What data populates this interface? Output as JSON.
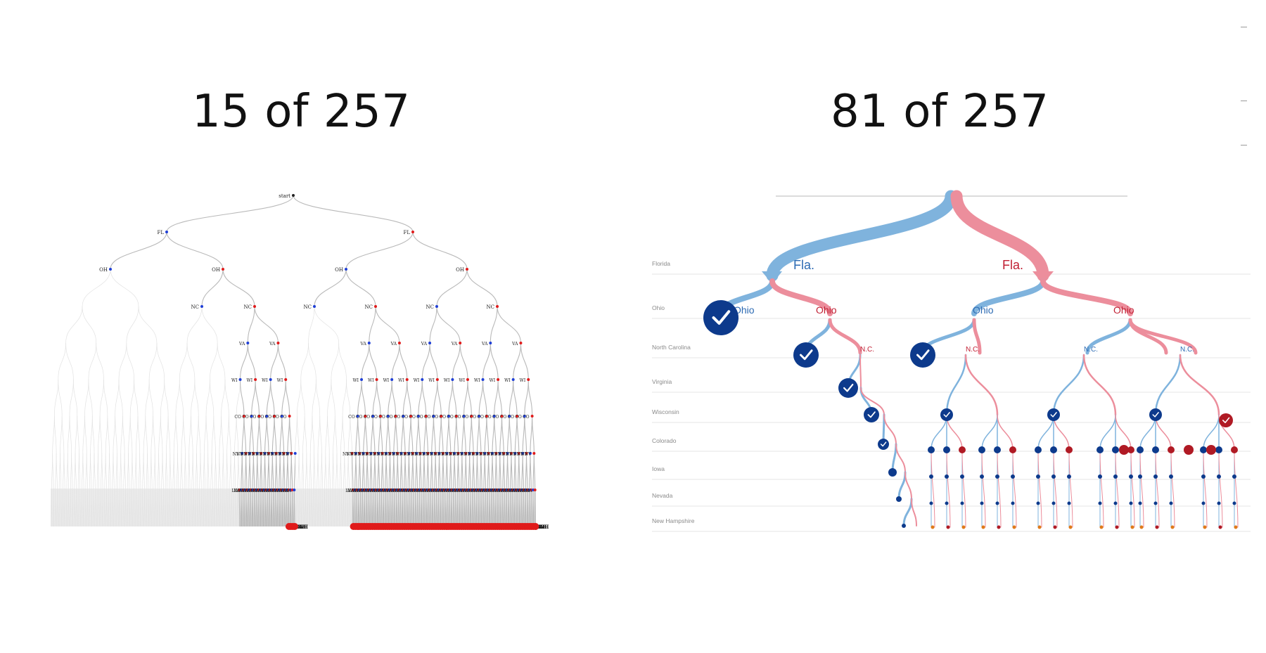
{
  "panels": {
    "left": {
      "title": "15 of 257"
    },
    "right": {
      "title": "81 of 257"
    }
  },
  "left_tree": {
    "root_label": "start",
    "level_labels": [
      "FL",
      "OH",
      "NC",
      "VA",
      "WI",
      "CO",
      "NV",
      "IA",
      "NH"
    ],
    "colors": {
      "blue": "#1f3fd6",
      "red": "#e01b1b",
      "edge": "#b9b9b9",
      "faint": "#e2e2e2",
      "shade": "#ececec"
    }
  },
  "right_tree": {
    "row_labels": [
      "Florida",
      "Ohio",
      "North Carolina",
      "Virginia",
      "Wisconsin",
      "Colorado",
      "Iowa",
      "Nevada",
      "New Hampshire"
    ],
    "node_labels": {
      "fla_dem": "Fla.",
      "fla_rep": "Fla.",
      "ohio_1": "Ohio",
      "ohio_2": "Ohio",
      "ohio_3": "Ohio",
      "ohio_4": "Ohio",
      "nc_1": "N.C.",
      "nc_2": "N.C.",
      "nc_3": "N.C.",
      "nc_4": "N.C."
    },
    "colors": {
      "dem": "#7fb3dd",
      "rep": "#ec8e9c",
      "dem_dark": "#0d3a8c",
      "rep_dark": "#b01a24",
      "dem_text": "#2d6bb3",
      "rep_text": "#c11f33",
      "grid": "#dcdcdc"
    }
  }
}
